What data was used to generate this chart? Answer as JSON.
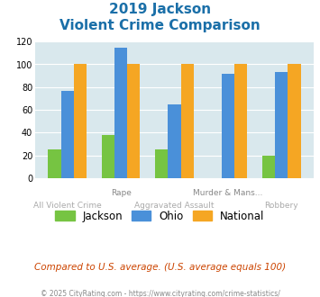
{
  "title_line1": "2019 Jackson",
  "title_line2": "Violent Crime Comparison",
  "groups": [
    {
      "name": "All Violent Crime",
      "jackson": 25,
      "ohio": 77,
      "national": 100
    },
    {
      "name": "Rape",
      "jackson": 38,
      "ohio": 115,
      "national": 100
    },
    {
      "name": "Aggravated Assault",
      "jackson": 25,
      "ohio": 65,
      "national": 100
    },
    {
      "name": "Murder & Mans...",
      "jackson": 0,
      "ohio": 92,
      "national": 100
    },
    {
      "name": "Robbery",
      "jackson": 20,
      "ohio": 93,
      "national": 100
    }
  ],
  "top_row_labels": {
    "1": "Rape",
    "3": "Murder & Mans..."
  },
  "bot_row_labels": {
    "0": "All Violent Crime",
    "2": "Aggravated Assault",
    "4": "Robbery"
  },
  "jackson_color": "#76c442",
  "ohio_color": "#4a90d9",
  "national_color": "#f5a623",
  "bg_color": "#d9e8ed",
  "ylim": [
    0,
    120
  ],
  "yticks": [
    0,
    20,
    40,
    60,
    80,
    100,
    120
  ],
  "footer_text": "Compared to U.S. average. (U.S. average equals 100)",
  "copyright_text": "© 2025 CityRating.com - https://www.cityrating.com/crime-statistics/"
}
